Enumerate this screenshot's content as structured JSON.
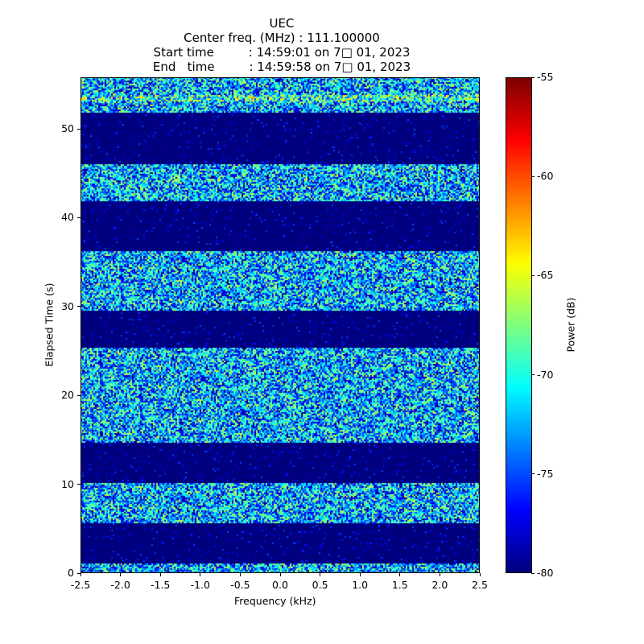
{
  "chart_data": {
    "type": "heatmap",
    "title_lines": [
      "UEC",
      "Center freq. (MHz) : 111.100000",
      "Start time         : 14:59:01 on 7□ 01, 2023",
      "End   time         : 14:59:58 on 7□ 01, 2023"
    ],
    "xlabel": "Frequency (kHz)",
    "ylabel": "Elapsed Time (s)",
    "xlim": [
      -2.5,
      2.5
    ],
    "ylim": [
      0,
      55.8
    ],
    "xticks": [
      "-2.5",
      "-2.0",
      "-1.5",
      "-1.0",
      "-0.5",
      "0.0",
      "0.5",
      "1.0",
      "1.5",
      "2.0",
      "2.5"
    ],
    "yticks": [
      "0",
      "10",
      "20",
      "30",
      "40",
      "50"
    ],
    "colorbar": {
      "label": "Power (dB)",
      "range": [
        -80,
        -55
      ],
      "ticks": [
        "-80",
        "-75",
        "-70",
        "-65",
        "-60",
        "-55"
      ],
      "colormap": "jet"
    },
    "active_bands_s": [
      [
        0,
        1.0
      ],
      [
        5.7,
        10.2
      ],
      [
        14.6,
        25.3
      ],
      [
        29.5,
        36.2
      ],
      [
        41.9,
        46.0
      ],
      [
        51.9,
        55.8
      ]
    ],
    "active_power_db_range": [
      -80,
      -64
    ],
    "quiet_power_db": -80,
    "strong_line_s": 53.5
  }
}
